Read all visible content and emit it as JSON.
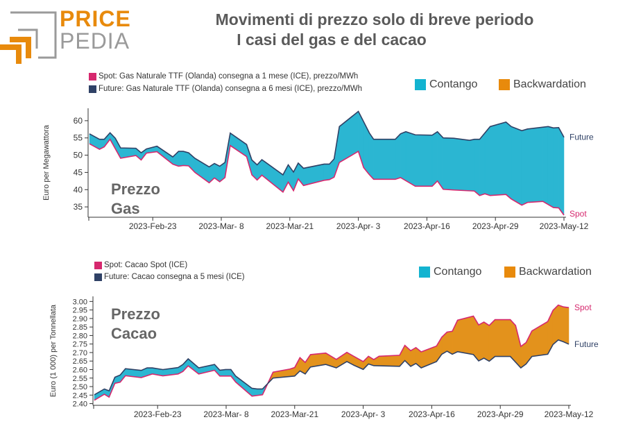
{
  "logo": {
    "text_top": "PRICE",
    "text_bottom": "PEDIA"
  },
  "title": {
    "line1": "Movimenti di prezzo solo di breve periodo",
    "line2": "I casi del gas e del cacao"
  },
  "colors": {
    "spot": "#d6286e",
    "future": "#2f4166",
    "contango": "#2bb6d2",
    "backwardation": "#e3921c",
    "brand_orange": "#e88a0c",
    "brand_gray": "#9a9a9a"
  },
  "chart_data": [
    {
      "type": "area",
      "id": "gas",
      "overlay_line1": "Prezzo",
      "overlay_line2": "Gas",
      "ylabel": "Euro per Megawattora",
      "ylim": [
        32,
        63.6
      ],
      "yticks": [
        35,
        40,
        45,
        50,
        55,
        60
      ],
      "xlim": [
        0,
        90
      ],
      "xticks": [
        {
          "x": 12,
          "label": "2023-Feb-23"
        },
        {
          "x": 25,
          "label": "2023-Mar- 8"
        },
        {
          "x": 38,
          "label": "2023-Mar-21"
        },
        {
          "x": 51,
          "label": "2023-Apr- 3"
        },
        {
          "x": 64,
          "label": "2023-Apr-16"
        },
        {
          "x": 77,
          "label": "2023-Apr-29"
        },
        {
          "x": 90,
          "label": "2023-May-12"
        }
      ],
      "legend": {
        "spot": "Spot: Gas Naturale TTF (Olanda) consegna a 1 mese (ICE), prezzo/MWh",
        "future": "Future: Gas Naturale TTF (Olanda) consegna a 6 mesi (ICE), prezzo/MWh",
        "contango": "Contango",
        "backwardation": "Backwardation"
      },
      "end_labels": {
        "future": "Future",
        "spot": "Spot"
      },
      "series": [
        {
          "name": "Future",
          "points": [
            [
              0,
              56.2
            ],
            [
              1.9,
              54.6
            ],
            [
              2.8,
              54.6
            ],
            [
              3.9,
              56.5
            ],
            [
              4.9,
              54.9
            ],
            [
              5.9,
              52.1
            ],
            [
              8.8,
              52
            ],
            [
              9.8,
              50.7
            ],
            [
              10.8,
              51.8
            ],
            [
              12.8,
              52.6
            ],
            [
              15.8,
              49.5
            ],
            [
              16.9,
              51.1
            ],
            [
              17.8,
              51.1
            ],
            [
              18.8,
              50.7
            ],
            [
              20,
              49.1
            ],
            [
              22.7,
              46.6
            ],
            [
              23.7,
              47.6
            ],
            [
              24.7,
              46.8
            ],
            [
              25.7,
              47.9
            ],
            [
              26.7,
              56.4
            ],
            [
              29.8,
              53.1
            ],
            [
              30.8,
              48.6
            ],
            [
              31.8,
              47.2
            ],
            [
              32.7,
              48.7
            ],
            [
              36.7,
              44.3
            ],
            [
              37.7,
              47.2
            ],
            [
              38.7,
              45.1
            ],
            [
              39.6,
              47.7
            ],
            [
              40.6,
              46.2
            ],
            [
              44.5,
              47.4
            ],
            [
              45.5,
              47.4
            ],
            [
              46.4,
              48.9
            ],
            [
              47.4,
              58.3
            ],
            [
              51,
              62.7
            ],
            [
              53.1,
              56.4
            ],
            [
              53.9,
              54.6
            ],
            [
              58,
              54.6
            ],
            [
              59,
              56.2
            ],
            [
              60,
              56.8
            ],
            [
              61.8,
              55.9
            ],
            [
              65,
              55.8
            ],
            [
              66,
              56.8
            ],
            [
              67.1,
              55
            ],
            [
              69.1,
              54.9
            ],
            [
              72.1,
              54.3
            ],
            [
              73,
              54.6
            ],
            [
              74,
              54.6
            ],
            [
              76,
              58.3
            ],
            [
              79,
              59.6
            ],
            [
              80,
              58.3
            ],
            [
              82,
              57.1
            ],
            [
              83.1,
              57.6
            ],
            [
              87,
              58.3
            ],
            [
              88,
              57.9
            ],
            [
              89,
              58
            ],
            [
              90,
              55.2
            ]
          ]
        },
        {
          "name": "Spot",
          "points": [
            [
              0,
              53.3
            ],
            [
              1.9,
              51.7
            ],
            [
              2.8,
              52.4
            ],
            [
              3.9,
              54.6
            ],
            [
              5.9,
              49.1
            ],
            [
              8.8,
              49.9
            ],
            [
              9.8,
              48.6
            ],
            [
              10.8,
              50.6
            ],
            [
              12.8,
              51
            ],
            [
              15.8,
              47.4
            ],
            [
              16.9,
              46.8
            ],
            [
              17.8,
              47
            ],
            [
              18.8,
              46.9
            ],
            [
              20,
              45
            ],
            [
              22.7,
              42
            ],
            [
              23.7,
              43.4
            ],
            [
              24.7,
              42.3
            ],
            [
              25.7,
              43.5
            ],
            [
              26.7,
              52.8
            ],
            [
              29.8,
              49.6
            ],
            [
              30.8,
              44.3
            ],
            [
              31.8,
              42.8
            ],
            [
              32.7,
              44.2
            ],
            [
              36.7,
              39.3
            ],
            [
              37.7,
              42.2
            ],
            [
              38.7,
              39.7
            ],
            [
              39.6,
              43.1
            ],
            [
              40.6,
              41.2
            ],
            [
              44.5,
              42.7
            ],
            [
              45.5,
              42.9
            ],
            [
              46.4,
              43.6
            ],
            [
              47.4,
              47.9
            ],
            [
              51,
              51.1
            ],
            [
              52,
              46.4
            ],
            [
              53,
              44.5
            ],
            [
              53.9,
              43
            ],
            [
              58,
              43
            ],
            [
              59,
              43.5
            ],
            [
              61.8,
              41
            ],
            [
              65,
              41
            ],
            [
              66,
              42.5
            ],
            [
              67.1,
              40.1
            ],
            [
              69.1,
              39.9
            ],
            [
              73,
              39.6
            ],
            [
              74,
              38.3
            ],
            [
              75,
              38.8
            ],
            [
              76,
              38.3
            ],
            [
              79,
              38.6
            ],
            [
              80,
              37.3
            ],
            [
              82,
              35.5
            ],
            [
              83.1,
              36.3
            ],
            [
              86,
              36.6
            ],
            [
              88,
              34.8
            ],
            [
              89,
              34.7
            ],
            [
              90,
              32.6
            ]
          ]
        }
      ]
    },
    {
      "type": "area",
      "id": "cacao",
      "overlay_line1": "Prezzo",
      "overlay_line2": "Cacao",
      "ylabel": "Euro (1 000) per Tonnellata",
      "ylim": [
        2.39,
        3.03
      ],
      "yticks": [
        2.4,
        2.45,
        2.5,
        2.55,
        2.6,
        2.65,
        2.7,
        2.75,
        2.8,
        2.85,
        2.9,
        2.95,
        3.0
      ],
      "xlim": [
        0,
        90
      ],
      "xticks": [
        {
          "x": 12,
          "label": "2023-Feb-23"
        },
        {
          "x": 25,
          "label": "2023-Mar- 8"
        },
        {
          "x": 38,
          "label": "2023-Mar-21"
        },
        {
          "x": 51,
          "label": "2023-Apr- 3"
        },
        {
          "x": 64,
          "label": "2023-Apr-16"
        },
        {
          "x": 77,
          "label": "2023-Apr-29"
        },
        {
          "x": 90,
          "label": "2023-May-12"
        }
      ],
      "legend": {
        "spot": "Spot: Cacao Spot (ICE)",
        "future": "Future: Cacao consegna a 5 mesi (ICE)",
        "contango": "Contango",
        "backwardation": "Backwardation"
      },
      "end_labels": {
        "future": "Future",
        "spot": "Spot"
      },
      "series": [
        {
          "name": "Future",
          "points": [
            [
              0,
              2.452
            ],
            [
              1.9,
              2.486
            ],
            [
              2.8,
              2.475
            ],
            [
              3.9,
              2.555
            ],
            [
              4.9,
              2.568
            ],
            [
              5.9,
              2.605
            ],
            [
              8.9,
              2.595
            ],
            [
              10,
              2.61
            ],
            [
              11,
              2.61
            ],
            [
              13,
              2.6
            ],
            [
              15.9,
              2.612
            ],
            [
              16.8,
              2.63
            ],
            [
              17.8,
              2.663
            ],
            [
              19.8,
              2.61
            ],
            [
              22.8,
              2.63
            ],
            [
              23.8,
              2.596
            ],
            [
              24.9,
              2.6
            ],
            [
              25.9,
              2.6
            ],
            [
              26.8,
              2.562
            ],
            [
              29.9,
              2.49
            ],
            [
              30.9,
              2.486
            ],
            [
              31.9,
              2.486
            ],
            [
              33.9,
              2.55
            ],
            [
              38,
              2.562
            ],
            [
              39,
              2.592
            ],
            [
              40,
              2.574
            ],
            [
              41,
              2.615
            ],
            [
              43.9,
              2.63
            ],
            [
              45.9,
              2.61
            ],
            [
              47.9,
              2.647
            ],
            [
              49.2,
              2.626
            ],
            [
              51,
              2.601
            ],
            [
              52,
              2.633
            ],
            [
              53,
              2.623
            ],
            [
              57.9,
              2.619
            ],
            [
              58.9,
              2.653
            ],
            [
              60,
              2.619
            ],
            [
              61,
              2.636
            ],
            [
              62,
              2.61
            ],
            [
              64.9,
              2.647
            ],
            [
              65.9,
              2.69
            ],
            [
              66.9,
              2.708
            ],
            [
              67.9,
              2.69
            ],
            [
              68.9,
              2.705
            ],
            [
              71.9,
              2.688
            ],
            [
              72.9,
              2.651
            ],
            [
              73.9,
              2.667
            ],
            [
              74.9,
              2.649
            ],
            [
              76,
              2.677
            ],
            [
              78.9,
              2.677
            ],
            [
              80.9,
              2.61
            ],
            [
              81.9,
              2.633
            ],
            [
              83,
              2.677
            ],
            [
              86,
              2.69
            ],
            [
              87,
              2.747
            ],
            [
              88,
              2.774
            ],
            [
              89,
              2.763
            ],
            [
              90,
              2.749
            ]
          ]
        },
        {
          "name": "Spot",
          "points": [
            [
              0,
              2.42
            ],
            [
              1.9,
              2.455
            ],
            [
              2.8,
              2.438
            ],
            [
              3.9,
              2.519
            ],
            [
              4.9,
              2.526
            ],
            [
              5.9,
              2.564
            ],
            [
              8.9,
              2.553
            ],
            [
              11,
              2.574
            ],
            [
              13,
              2.563
            ],
            [
              15.9,
              2.574
            ],
            [
              16.8,
              2.589
            ],
            [
              17.8,
              2.622
            ],
            [
              19.8,
              2.574
            ],
            [
              22.8,
              2.596
            ],
            [
              23.8,
              2.562
            ],
            [
              25.9,
              2.562
            ],
            [
              26.8,
              2.527
            ],
            [
              29.9,
              2.444
            ],
            [
              31.9,
              2.452
            ],
            [
              33.9,
              2.585
            ],
            [
              37.1,
              2.603
            ],
            [
              38,
              2.612
            ],
            [
              39,
              2.67
            ],
            [
              40,
              2.642
            ],
            [
              41,
              2.688
            ],
            [
              43.9,
              2.697
            ],
            [
              45.9,
              2.66
            ],
            [
              47.9,
              2.701
            ],
            [
              49.2,
              2.678
            ],
            [
              51,
              2.647
            ],
            [
              52,
              2.678
            ],
            [
              53,
              2.659
            ],
            [
              54,
              2.678
            ],
            [
              57.9,
              2.684
            ],
            [
              58.9,
              2.742
            ],
            [
              60,
              2.711
            ],
            [
              61,
              2.729
            ],
            [
              62,
              2.704
            ],
            [
              64.9,
              2.738
            ],
            [
              65.9,
              2.79
            ],
            [
              66.9,
              2.82
            ],
            [
              67.9,
              2.825
            ],
            [
              68.9,
              2.89
            ],
            [
              71.9,
              2.914
            ],
            [
              72.9,
              2.862
            ],
            [
              73.9,
              2.879
            ],
            [
              74.9,
              2.859
            ],
            [
              76,
              2.893
            ],
            [
              78.9,
              2.893
            ],
            [
              79.9,
              2.859
            ],
            [
              80.9,
              2.736
            ],
            [
              81.9,
              2.759
            ],
            [
              83,
              2.827
            ],
            [
              86,
              2.882
            ],
            [
              87,
              2.948
            ],
            [
              88,
              2.979
            ],
            [
              89,
              2.968
            ],
            [
              90,
              2.964
            ]
          ]
        }
      ]
    }
  ]
}
